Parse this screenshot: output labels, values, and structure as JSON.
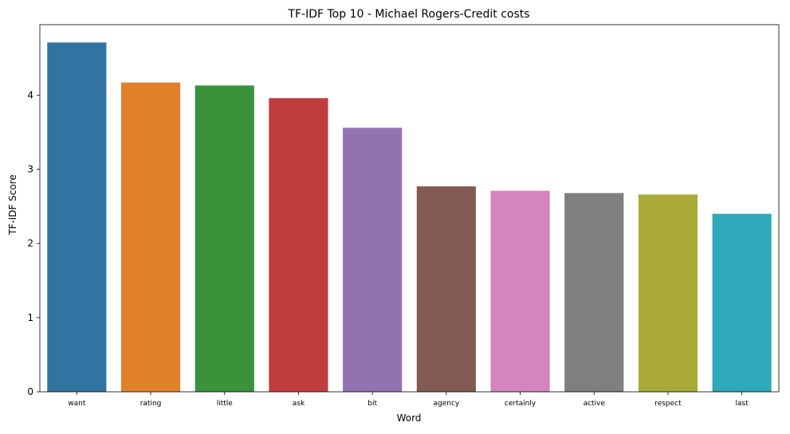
{
  "chart_data": {
    "type": "bar",
    "title": "TF-IDF Top 10 - Michael Rogers-Credit costs",
    "xlabel": "Word",
    "ylabel": "TF-IDF Score",
    "categories": [
      "want",
      "rating",
      "little",
      "ask",
      "bit",
      "agency",
      "certainly",
      "active",
      "respect",
      "last"
    ],
    "values": [
      4.71,
      4.17,
      4.13,
      3.96,
      3.56,
      2.77,
      2.71,
      2.68,
      2.66,
      2.4
    ],
    "colors": [
      "#3274a1",
      "#e1812c",
      "#3a923a",
      "#c03d3e",
      "#9372b2",
      "#845b53",
      "#d684bd",
      "#7f7f7f",
      "#a9aa35",
      "#2ea9b9"
    ],
    "yticks": [
      0,
      1,
      2,
      3,
      4
    ],
    "ylim": [
      0,
      4.95
    ],
    "grid": false,
    "legend": "none"
  }
}
